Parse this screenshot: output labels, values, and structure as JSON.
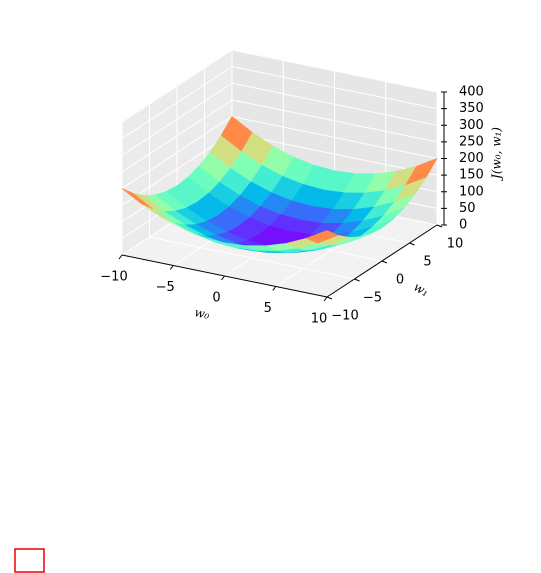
{
  "chart_data": {
    "type": "surface",
    "xlabel": "w₀",
    "ylabel": "w₁",
    "zlabel": "J(w₀, w₁)",
    "x": [
      -10,
      -8,
      -6,
      -4,
      -2,
      0,
      2,
      4,
      6,
      8,
      10
    ],
    "y": [
      -10,
      -8,
      -6,
      -4,
      -2,
      0,
      2,
      4,
      6,
      8,
      10
    ],
    "z": [
      [
        200,
        164,
        136,
        116,
        104,
        100,
        104,
        116,
        136,
        164,
        200
      ],
      [
        164,
        128,
        100,
        80,
        68,
        64,
        68,
        80,
        100,
        128,
        164
      ],
      [
        136,
        100,
        72,
        52,
        40,
        36,
        40,
        52,
        72,
        100,
        136
      ],
      [
        116,
        80,
        52,
        32,
        20,
        16,
        20,
        32,
        52,
        80,
        116
      ],
      [
        104,
        68,
        40,
        20,
        8,
        4,
        8,
        20,
        40,
        68,
        104
      ],
      [
        100,
        64,
        36,
        16,
        4,
        0,
        4,
        16,
        36,
        64,
        100
      ],
      [
        104,
        68,
        40,
        20,
        8,
        4,
        8,
        20,
        40,
        68,
        104
      ],
      [
        116,
        80,
        52,
        32,
        20,
        16,
        20,
        32,
        52,
        80,
        116
      ],
      [
        136,
        100,
        72,
        52,
        40,
        36,
        40,
        52,
        72,
        100,
        136
      ],
      [
        164,
        128,
        100,
        80,
        68,
        64,
        68,
        80,
        100,
        128,
        164
      ],
      [
        200,
        164,
        136,
        116,
        104,
        100,
        104,
        116,
        136,
        164,
        200
      ]
    ],
    "xlim": [
      -10,
      10
    ],
    "ylim": [
      -10,
      10
    ],
    "zlim": [
      0,
      400
    ],
    "xticks": [
      {
        "value": -10,
        "label": "−10"
      },
      {
        "value": -5,
        "label": "−5"
      },
      0,
      5,
      10
    ],
    "yticks": [
      {
        "value": -10,
        "label": "−10"
      },
      {
        "value": -5,
        "label": "−5"
      },
      0,
      5,
      10
    ],
    "zticks": [
      0,
      50,
      100,
      150,
      200,
      250,
      300,
      350,
      400
    ],
    "colormap": "rainbow",
    "grid": true
  }
}
